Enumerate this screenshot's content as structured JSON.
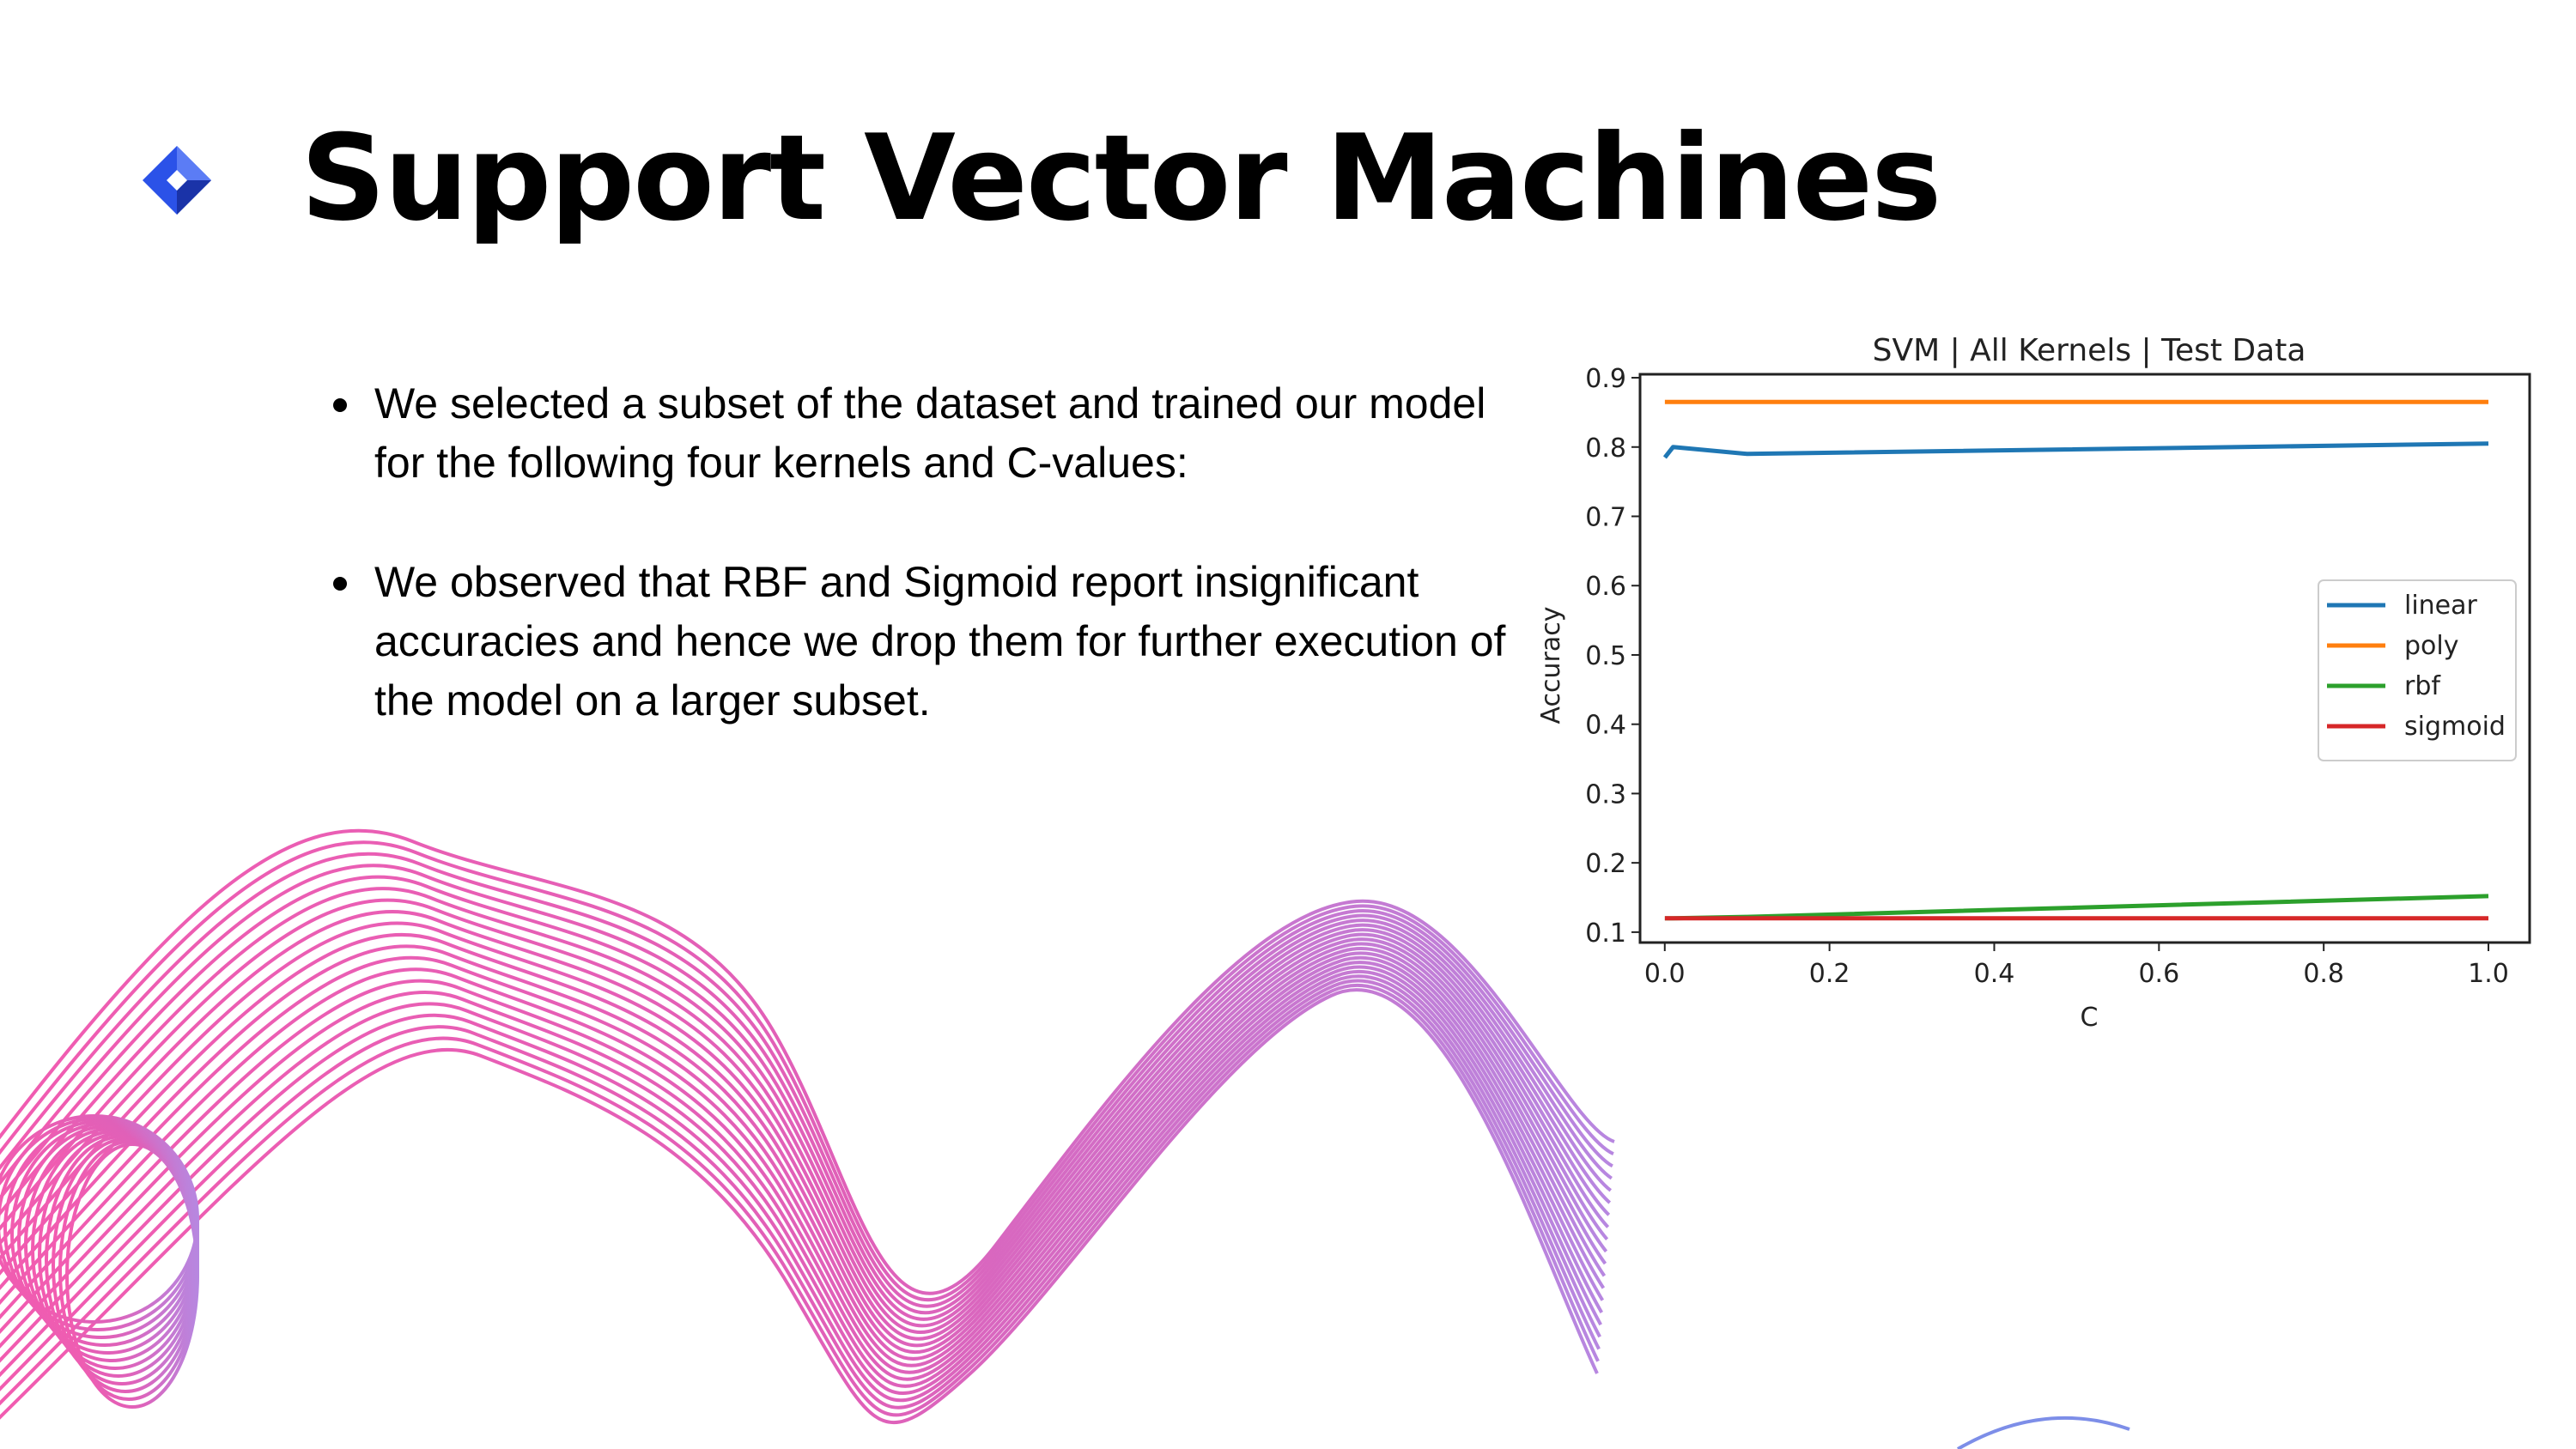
{
  "slide": {
    "title": "Support Vector Machines",
    "logo_icon": "blue-diamond-logo-icon",
    "bullets": [
      "We selected a subset of the dataset and trained our model for the following four kernels and C-values:",
      "We observed that RBF and Sigmoid report insignificant accuracies and hence we drop them for further execution of the model on a larger subset."
    ],
    "decoration": "pink-purple-wave-lines"
  },
  "chart_data": {
    "type": "line",
    "title": "SVM | All Kernels | Test Data",
    "xlabel": "C",
    "ylabel": "Accuracy",
    "xlim": [
      -0.03,
      1.05
    ],
    "ylim": [
      0.085,
      0.905
    ],
    "xticks": [
      "0.0",
      "0.2",
      "0.4",
      "0.6",
      "0.8",
      "1.0"
    ],
    "yticks": [
      "0.1",
      "0.2",
      "0.3",
      "0.4",
      "0.5",
      "0.6",
      "0.7",
      "0.8",
      "0.9"
    ],
    "legend_position": "center-right",
    "grid": false,
    "series": [
      {
        "name": "linear",
        "color": "#1f77b4",
        "x": [
          0.0001,
          0.01,
          0.1,
          1.0
        ],
        "y": [
          0.785,
          0.8,
          0.79,
          0.805
        ]
      },
      {
        "name": "poly",
        "color": "#ff7f0e",
        "x": [
          0.0001,
          0.01,
          0.1,
          1.0
        ],
        "y": [
          0.865,
          0.865,
          0.865,
          0.865
        ]
      },
      {
        "name": "rbf",
        "color": "#2ca02c",
        "x": [
          0.0001,
          0.01,
          0.1,
          1.0
        ],
        "y": [
          0.12,
          0.12,
          0.122,
          0.152
        ]
      },
      {
        "name": "sigmoid",
        "color": "#d62728",
        "x": [
          0.0001,
          0.01,
          0.1,
          1.0
        ],
        "y": [
          0.12,
          0.12,
          0.12,
          0.12
        ]
      }
    ]
  }
}
